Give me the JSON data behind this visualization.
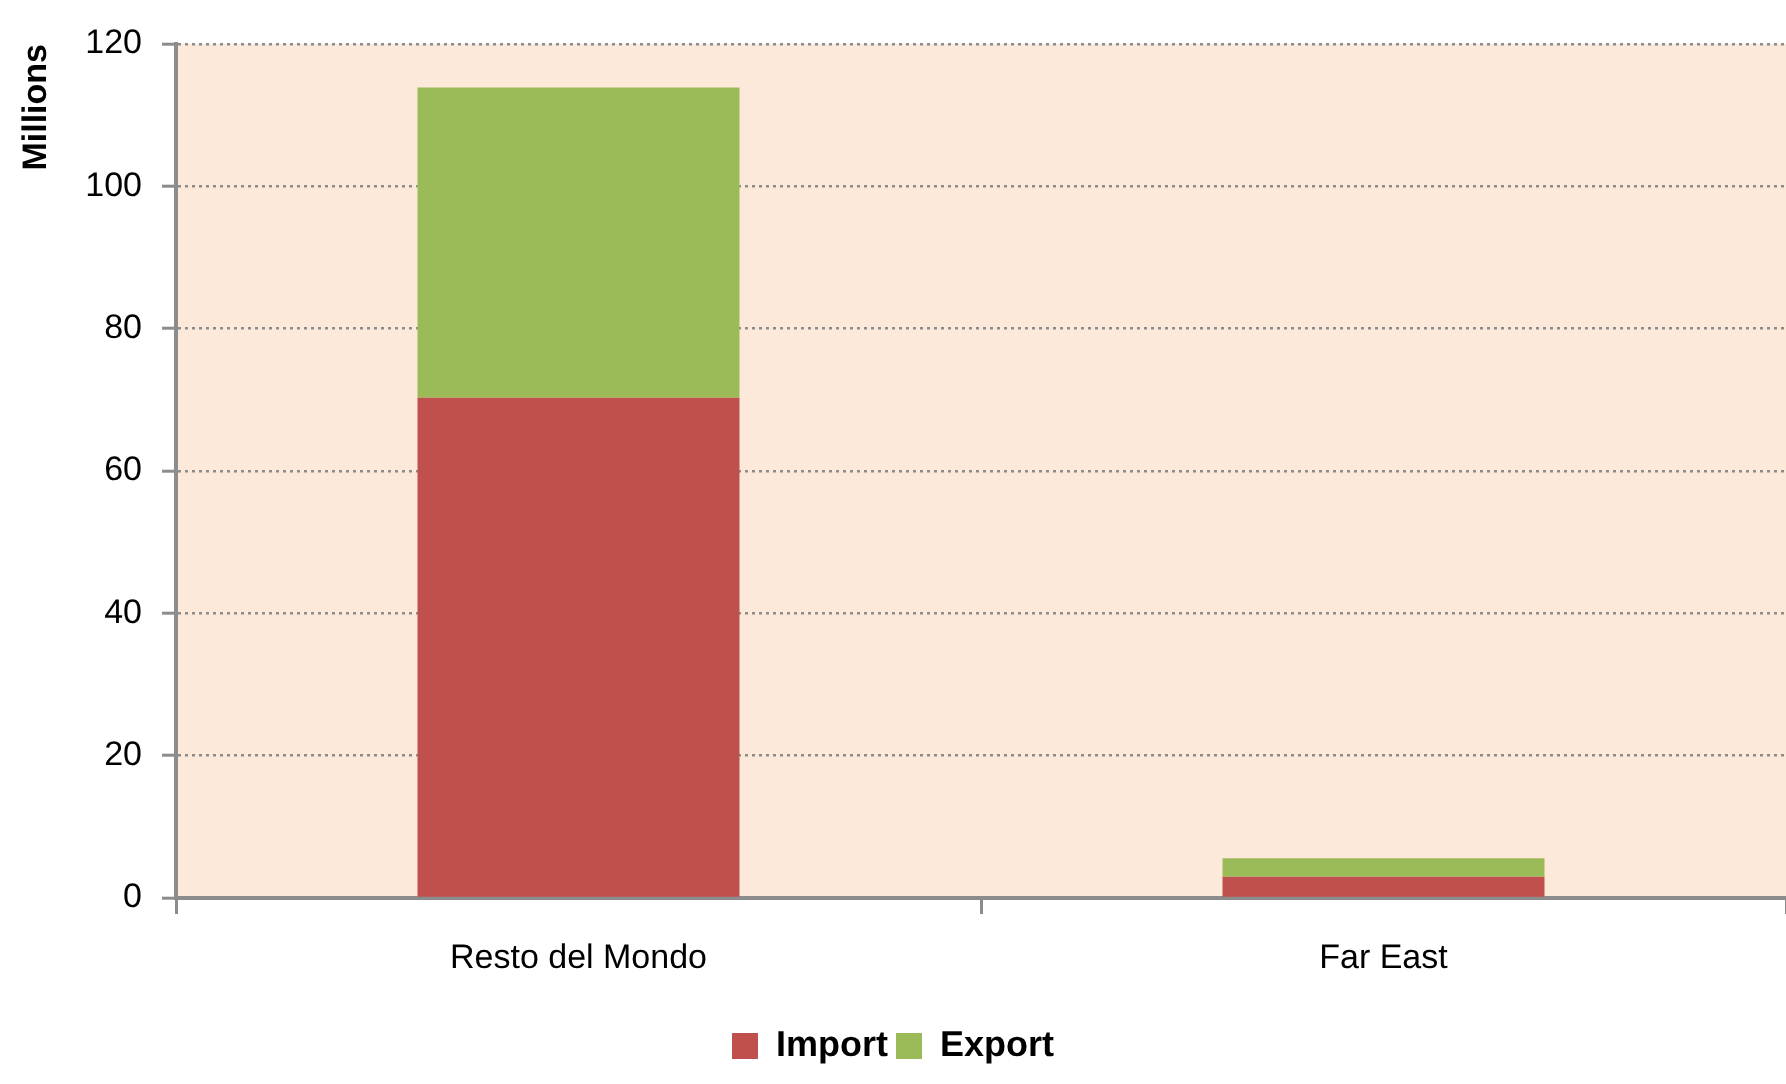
{
  "chart_data": {
    "type": "bar",
    "ylabel": "Millions",
    "categories": [
      "Resto del Mondo",
      "Far East"
    ],
    "series": [
      {
        "name": "Import",
        "color": "#c0504d",
        "values": [
          70.3,
          3.0
        ]
      },
      {
        "name": "Export",
        "color": "#9bbb59",
        "values": [
          43.6,
          2.6
        ]
      }
    ],
    "stacked": true,
    "ylim": [
      0,
      120
    ],
    "yticks": [
      0,
      20,
      40,
      60,
      80,
      100,
      120
    ],
    "grid": "y",
    "legend": "bottom"
  }
}
